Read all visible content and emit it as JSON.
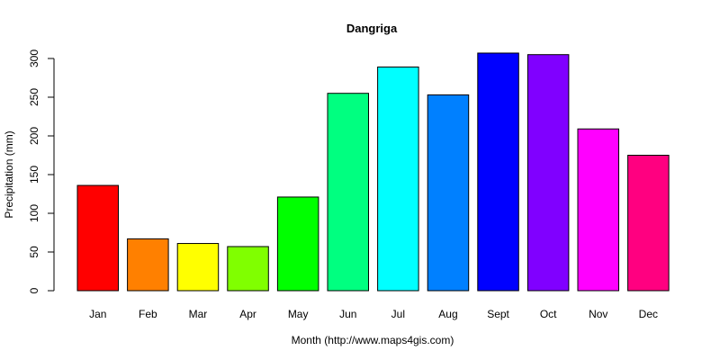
{
  "chart_data": {
    "type": "bar",
    "title": "Dangriga",
    "xlabel": "Month (http://www.maps4gis.com)",
    "ylabel": "Precipitation (mm)",
    "categories": [
      "Jan",
      "Feb",
      "Mar",
      "Apr",
      "May",
      "Jun",
      "Jul",
      "Aug",
      "Sept",
      "Oct",
      "Nov",
      "Dec"
    ],
    "values": [
      136,
      67,
      61,
      57,
      121,
      255,
      289,
      253,
      307,
      305,
      209,
      175
    ],
    "colors": [
      "#FF0000",
      "#FF8000",
      "#FFFF00",
      "#80FF00",
      "#00FF00",
      "#00FF80",
      "#00FFFF",
      "#0080FF",
      "#0000FF",
      "#8000FF",
      "#FF00FF",
      "#FF0080"
    ],
    "yticks": [
      0,
      50,
      100,
      150,
      200,
      250,
      300
    ],
    "ylim": [
      0,
      300
    ],
    "grid": false,
    "legend": null
  }
}
